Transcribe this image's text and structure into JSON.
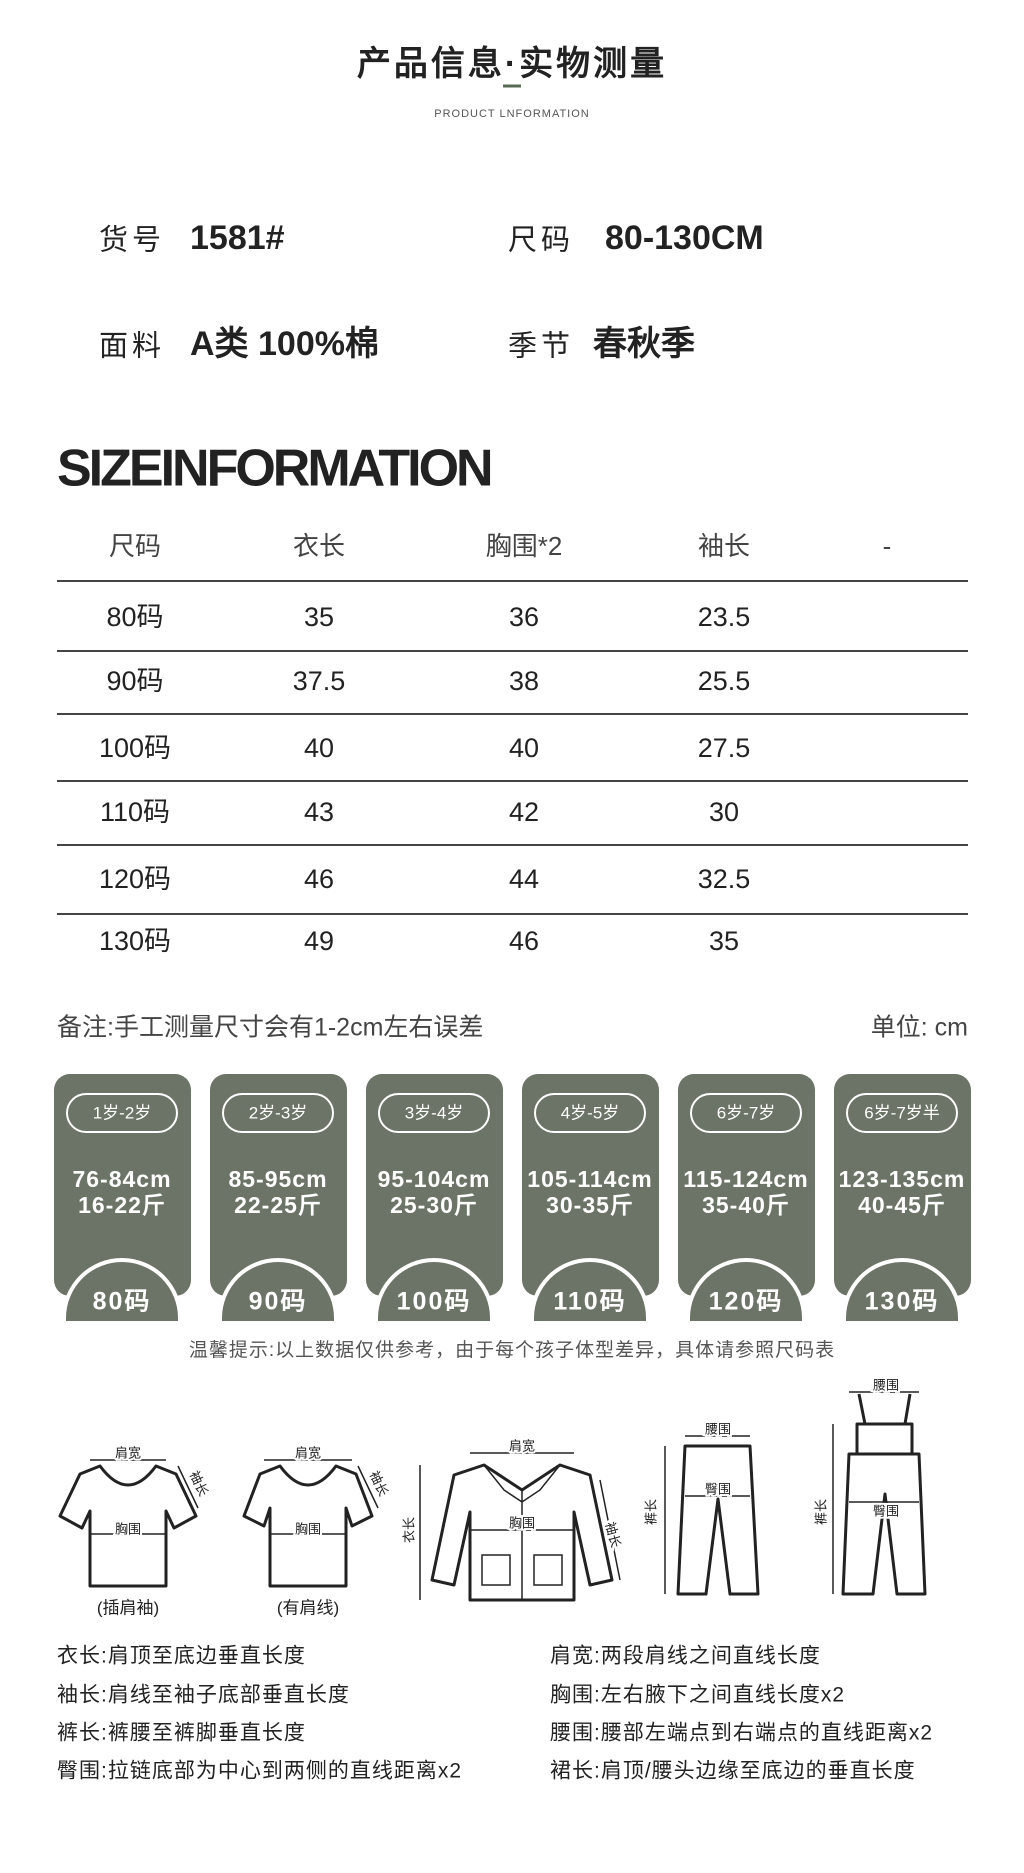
{
  "header": {
    "title": "产品信息·实物测量",
    "subtitle": "PRODUCT LNFORMATION"
  },
  "info": [
    {
      "label": "货号",
      "value": "1581#"
    },
    {
      "label": "尺码",
      "value": "80-130CM"
    },
    {
      "label": "面料",
      "value": "A类  100%棉"
    },
    {
      "label": "季节",
      "value": "春秋季"
    }
  ],
  "size_heading": "SIZEINFORMATION",
  "table": {
    "header": [
      "尺码",
      "衣长",
      "胸围*2",
      "袖长",
      "-"
    ],
    "rows": [
      [
        "80码",
        "35",
        "36",
        "23.5"
      ],
      [
        "90码",
        "37.5",
        "38",
        "25.5"
      ],
      [
        "100码",
        "40",
        "40",
        "27.5"
      ],
      [
        "110码",
        "43",
        "42",
        "30"
      ],
      [
        "120码",
        "46",
        "44",
        "32.5"
      ],
      [
        "130码",
        "49",
        "46",
        "35"
      ]
    ]
  },
  "note": "备注:手工测量尺寸会有1-2cm左右误差",
  "unit": "单位:  cm",
  "cards": [
    {
      "age": "1岁-2岁",
      "height": "76-84cm",
      "weight": "16-22斤",
      "size": "80码"
    },
    {
      "age": "2岁-3岁",
      "height": "85-95cm",
      "weight": "22-25斤",
      "size": "90码"
    },
    {
      "age": "3岁-4岁",
      "height": "95-104cm",
      "weight": "25-30斤",
      "size": "100码"
    },
    {
      "age": "4岁-5岁",
      "height": "105-114cm",
      "weight": "30-35斤",
      "size": "110码"
    },
    {
      "age": "6岁-7岁",
      "height": "115-124cm",
      "weight": "35-40斤",
      "size": "120码"
    },
    {
      "age": "6岁-7岁半",
      "height": "123-135cm",
      "weight": "40-45斤",
      "size": "130码"
    }
  ],
  "tip": "温馨提示:以上数据仅供参考，由于每个孩子体型差异，具体请参照尺码表",
  "diagrams": [
    {
      "labels": [
        "肩宽",
        "袖长",
        "胸围"
      ],
      "caption": "(插肩袖)"
    },
    {
      "labels": [
        "肩宽",
        "袖长",
        "胸围"
      ],
      "caption": "(有肩线)"
    },
    {
      "labels": [
        "肩宽",
        "衣长",
        "胸围",
        "袖长"
      ]
    },
    {
      "labels": [
        "腰围",
        "臀围",
        "裤长"
      ]
    },
    {
      "labels": [
        "腰围",
        "裤长",
        "臀围"
      ]
    }
  ],
  "definitions": [
    [
      "衣长:肩顶至底边垂直长度",
      "肩宽:两段肩线之间直线长度"
    ],
    [
      "袖长:肩线至袖子底部垂直长度",
      "胸围:左右腋下之间直线长度x2"
    ],
    [
      "裤长:裤腰至裤脚垂直长度",
      "腰围:腰部左端点到右端点的直线距离x2"
    ],
    [
      "臀围:拉链底部为中心到两侧的直线距离x2",
      "裙长:肩顶/腰头边缘至底边的垂直长度"
    ]
  ]
}
